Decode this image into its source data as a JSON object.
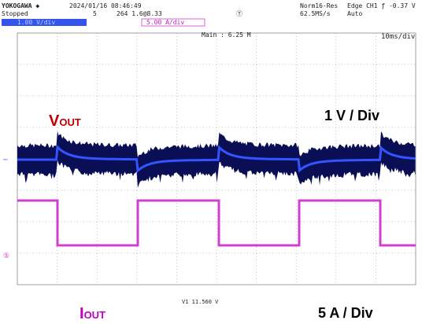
{
  "header": {
    "brand": "YOKOGAWA ◆",
    "timestamp": "2024/01/16 08:46:49",
    "status": "Stopped",
    "acq_count": "5",
    "record": "264 1.6@8.33",
    "mode": "Norm16-Res",
    "rate": "62.5MS/s",
    "trigger": "Edge CH1 ƒ -0.37 V",
    "trigger_mode": "Auto",
    "ch1_scale": "1.00 V/div",
    "ch5_scale": "5.00 A/div"
  },
  "screen": {
    "main": "Main : 6.25 M",
    "timebase": "10ms/div",
    "cursor": "V1  11.560 V"
  },
  "annotations": {
    "vout_main": "V",
    "vout_sub": "OUT",
    "vout_scale": "1 V / Div",
    "iout_main": "I",
    "iout_sub": "OUT",
    "iout_scale": "5 A / Div"
  }
}
